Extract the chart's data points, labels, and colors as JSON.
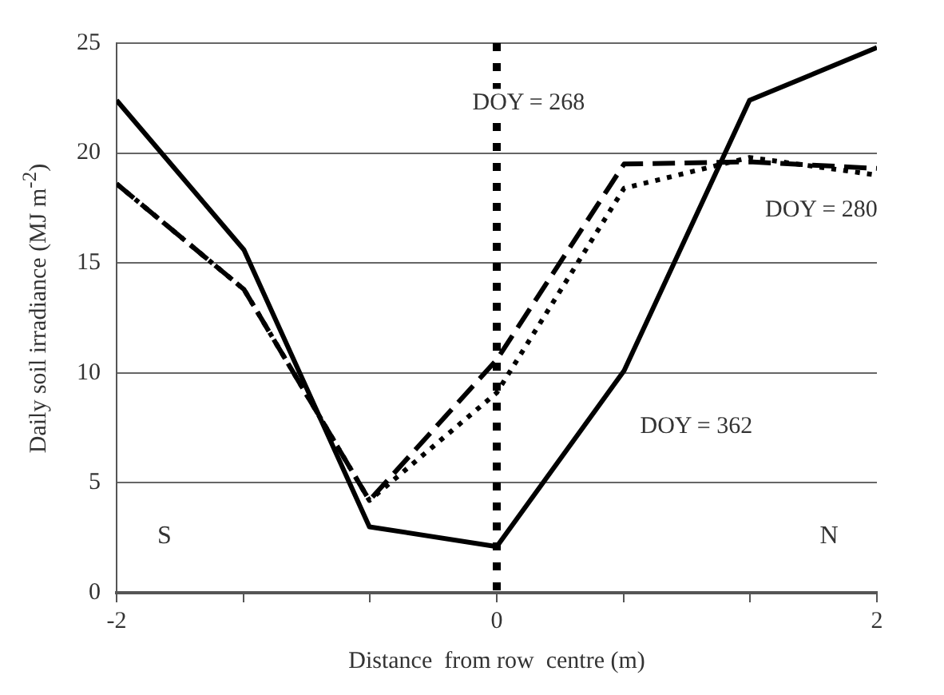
{
  "chart_data": {
    "type": "line",
    "xlabel": "Distance  from row  centre (m)",
    "ylabel": "Daily soil irradiance   (MJ m$^{-2}$)",
    "x": [
      -2,
      -1.33,
      -0.67,
      0,
      0.67,
      1.33,
      2
    ],
    "series": [
      {
        "name": "DOY = 268",
        "color": "#000000",
        "line_style": "dashed",
        "values": [
          18.6,
          13.8,
          4.2,
          10.6,
          19.5,
          19.6,
          19.3
        ]
      },
      {
        "name": "DOY = 280",
        "color": "#000000",
        "line_style": "dotted",
        "values": [
          18.6,
          13.8,
          4.2,
          9.1,
          18.4,
          19.8,
          19.0
        ]
      },
      {
        "name": "DOY = 362",
        "color": "#000000",
        "line_style": "solid",
        "values": [
          22.4,
          15.6,
          3.0,
          2.1,
          10.1,
          22.4,
          24.8
        ]
      }
    ],
    "xlim": [
      -2,
      2
    ],
    "xticks": [
      -2,
      {
        "value": -1.33,
        "label": null
      },
      {
        "value": -0.67,
        "label": null
      },
      0,
      {
        "value": 0.67,
        "label": null
      },
      {
        "value": 1.33,
        "label": null
      },
      2
    ],
    "ylim": [
      0,
      25
    ],
    "yticks": [
      0,
      5,
      10,
      15,
      20,
      25
    ],
    "grid": "y",
    "legend": false,
    "marker": "none",
    "ref_lines": [
      {
        "axis": "x",
        "value": 0,
        "color": "#000000",
        "line_style": "dotted"
      }
    ],
    "annotations": [
      "S",
      "N"
    ]
  }
}
